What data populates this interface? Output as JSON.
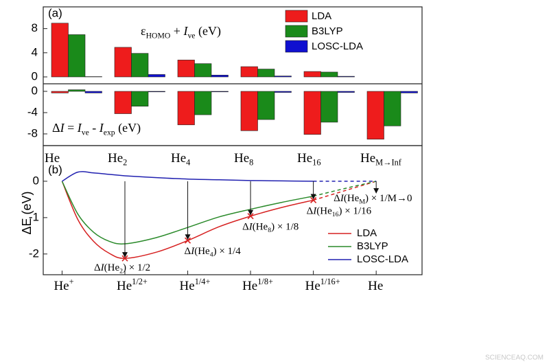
{
  "chart_data": [
    {
      "type": "bar",
      "panel_label": "(a)",
      "categories": [
        [
          {
            "text": "He"
          }
        ],
        [
          {
            "text": "He"
          },
          {
            "text": "2",
            "sub": true
          }
        ],
        [
          {
            "text": "He"
          },
          {
            "text": "4",
            "sub": true
          }
        ],
        [
          {
            "text": "He"
          },
          {
            "text": "8",
            "sub": true
          }
        ],
        [
          {
            "text": "He"
          },
          {
            "text": "16",
            "sub": true
          }
        ],
        [
          {
            "text": "He"
          },
          {
            "text": "M→Inf",
            "sub": true
          }
        ]
      ],
      "series": [
        {
          "name": "LDA",
          "color": "#ee1c1c",
          "values": [
            8.9,
            4.9,
            2.8,
            1.7,
            0.9,
            null
          ],
          "delta_values": [
            -0.3,
            -4.2,
            -6.3,
            -7.4,
            -8.1,
            -9.0
          ]
        },
        {
          "name": "B3LYP",
          "color": "#1a8a1a",
          "values": [
            7.0,
            3.9,
            2.2,
            1.3,
            0.8,
            null
          ],
          "delta_values": [
            0.3,
            -2.8,
            -4.4,
            -5.3,
            -5.8,
            -6.5
          ]
        },
        {
          "name": "LOSC-LDA",
          "color": "#1010d0",
          "values": [
            0.05,
            0.4,
            0.3,
            0.15,
            0.1,
            null
          ],
          "delta_values": [
            -0.3,
            -0.1,
            -0.1,
            -0.2,
            -0.2,
            -0.3
          ]
        }
      ],
      "ylim": [
        -1.14,
        11.6
      ],
      "yticks": [
        0,
        4,
        8
      ],
      "delta_ylim": [
        -10.2,
        1.42
      ],
      "delta_yticks": [
        0,
        -4,
        -8
      ],
      "annotation": [
        {
          "text": "ε"
        },
        {
          "text": "HOMO",
          "sub": true
        },
        {
          "text": " + "
        },
        {
          "text": "I",
          "italic": true
        },
        {
          "text": "ve",
          "sub": true
        },
        {
          "text": " (eV)"
        }
      ],
      "delta_annotation": [
        {
          "text": "Δ"
        },
        {
          "text": "I",
          "italic": true
        },
        {
          "text": " = "
        },
        {
          "text": "I",
          "italic": true
        },
        {
          "text": "ve",
          "sub": true
        },
        {
          "text": " - "
        },
        {
          "text": "I",
          "italic": true
        },
        {
          "text": "exp",
          "sub": true
        },
        {
          "text": " (eV)"
        }
      ]
    },
    {
      "type": "line",
      "panel_label": "(b)",
      "y_label": "ΔE (eV)",
      "x": [
        0,
        0.25,
        0.5,
        0.75,
        1,
        1.5,
        2,
        2.5,
        3,
        3.5,
        4,
        4.5,
        5
      ],
      "xlim": [
        -0.3,
        5.73
      ],
      "xticks": [
        {
          "value": 0,
          "label": [
            {
              "text": "He"
            },
            {
              "text": "+",
              "sup": true
            }
          ]
        },
        {
          "value": 1,
          "label": [
            {
              "text": "He"
            },
            {
              "text": "1/2+",
              "sup": true
            }
          ]
        },
        {
          "value": 2,
          "label": [
            {
              "text": "He"
            },
            {
              "text": "1/4+",
              "sup": true
            }
          ]
        },
        {
          "value": 3,
          "label": [
            {
              "text": "He"
            },
            {
              "text": "1/8+",
              "sup": true
            }
          ]
        },
        {
          "value": 4,
          "label": [
            {
              "text": "He"
            },
            {
              "text": "1/16+",
              "sup": true
            }
          ]
        },
        {
          "value": 5,
          "label": [
            {
              "text": "He"
            }
          ]
        }
      ],
      "ylim": [
        -2.57,
        0.98
      ],
      "yticks": [
        0,
        -1,
        -2
      ],
      "dash_from_x": 4,
      "series": [
        {
          "name": "LDA",
          "color": "#d62020",
          "values": [
            0,
            -1.05,
            -1.65,
            -1.98,
            -2.12,
            -1.95,
            -1.63,
            -1.25,
            -0.96,
            -0.72,
            -0.52,
            -0.26,
            0
          ]
        },
        {
          "name": "B3LYP",
          "color": "#2a8a2a",
          "values": [
            0,
            -0.9,
            -1.4,
            -1.65,
            -1.72,
            -1.55,
            -1.27,
            -0.98,
            -0.77,
            -0.58,
            -0.41,
            -0.2,
            0
          ]
        },
        {
          "name": "LOSC-LDA",
          "color": "#2020b0",
          "values": [
            0,
            0.25,
            0.23,
            0.19,
            0.15,
            0.1,
            0.06,
            0.04,
            0.02,
            0.01,
            0,
            0,
            0
          ]
        }
      ],
      "annotations": [
        {
          "index": 4,
          "parts": [
            {
              "text": "Δ"
            },
            {
              "text": "I",
              "italic": true
            },
            {
              "text": "(He"
            },
            {
              "text": "2",
              "sub": true
            },
            {
              "text": ") × 1/2"
            }
          ]
        },
        {
          "index": 6,
          "parts": [
            {
              "text": "Δ"
            },
            {
              "text": "I",
              "italic": true
            },
            {
              "text": "(He"
            },
            {
              "text": "4",
              "sub": true
            },
            {
              "text": ") × 1/4"
            }
          ]
        },
        {
          "index": 8,
          "parts": [
            {
              "text": "Δ"
            },
            {
              "text": "I",
              "italic": true
            },
            {
              "text": "(He"
            },
            {
              "text": "8",
              "sub": true
            },
            {
              "text": ") × 1/8"
            }
          ]
        },
        {
          "index": 10,
          "parts": [
            {
              "text": "Δ"
            },
            {
              "text": "I",
              "italic": true
            },
            {
              "text": "(He"
            },
            {
              "text": "16",
              "sub": true
            },
            {
              "text": ") × 1/16"
            }
          ]
        },
        {
          "index": 12,
          "parts": [
            {
              "text": "Δ"
            },
            {
              "text": "I",
              "italic": true
            },
            {
              "text": "(He"
            },
            {
              "text": "M",
              "sub": true
            },
            {
              "text": ") × 1/M→0"
            }
          ]
        }
      ]
    }
  ],
  "watermark": "SCIENCEAQ.COM"
}
